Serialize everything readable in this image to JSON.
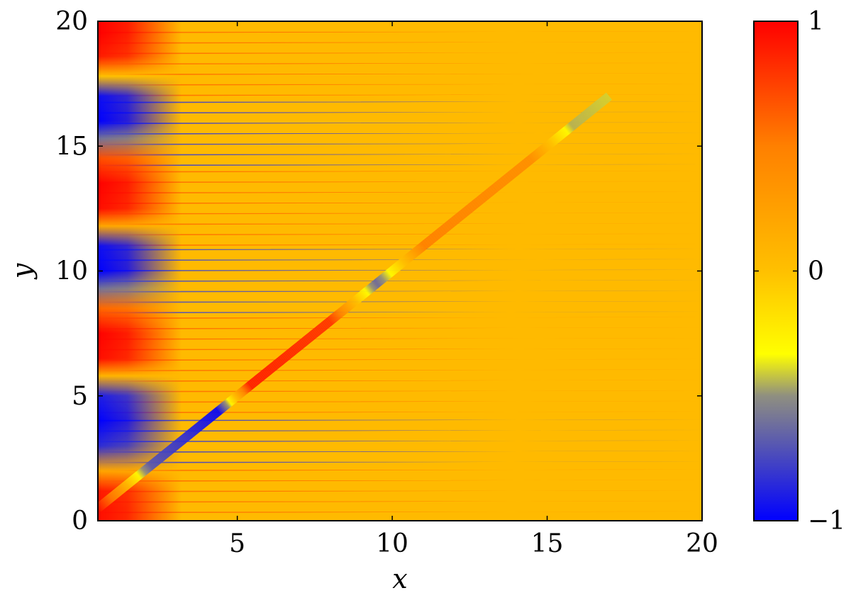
{
  "chart_data": {
    "type": "heatmap",
    "title": "",
    "xlabel": "x",
    "ylabel": "y",
    "xlim": [
      0.5,
      20
    ],
    "ylim": [
      0,
      20
    ],
    "x_ticks": [
      5,
      10,
      15,
      20
    ],
    "x_tick_labels": [
      "5",
      "10",
      "15",
      "20"
    ],
    "y_ticks": [
      0,
      5,
      10,
      15,
      20
    ],
    "y_tick_labels": [
      "0",
      "5",
      "10",
      "15",
      "20"
    ],
    "colorbar": {
      "range": [
        -1,
        1
      ],
      "ticks": [
        -1,
        0,
        1
      ],
      "tick_labels": [
        "−1",
        "0",
        "1"
      ],
      "colormap": [
        {
          "value": -1,
          "color": "#0000ff"
        },
        {
          "value": -0.5,
          "color": "#8f8f80"
        },
        {
          "value": -0.333,
          "color": "#ffff00"
        },
        {
          "value": 0,
          "color": "#ffc000"
        },
        {
          "value": 0.5,
          "color": "#ff8000"
        },
        {
          "value": 1,
          "color": "#ff0000"
        }
      ]
    },
    "background_value": 0.05,
    "left_edge_field": [
      {
        "y": 0.5,
        "value": 0.95
      },
      {
        "y": 1.2,
        "value": 0.9
      },
      {
        "y": 2.0,
        "value": 0.2
      },
      {
        "y": 3.0,
        "value": -0.85
      },
      {
        "y": 4.0,
        "value": -1.0
      },
      {
        "y": 5.0,
        "value": -0.9
      },
      {
        "y": 5.8,
        "value": 0.1
      },
      {
        "y": 6.5,
        "value": 0.95
      },
      {
        "y": 7.5,
        "value": 1.0
      },
      {
        "y": 8.5,
        "value": 0.6
      },
      {
        "y": 9.3,
        "value": -0.6
      },
      {
        "y": 10.0,
        "value": -1.0
      },
      {
        "y": 11.0,
        "value": -0.95
      },
      {
        "y": 11.8,
        "value": 0.2
      },
      {
        "y": 12.5,
        "value": 0.95
      },
      {
        "y": 13.5,
        "value": 1.0
      },
      {
        "y": 14.5,
        "value": 0.7
      },
      {
        "y": 15.3,
        "value": -0.6
      },
      {
        "y": 16.0,
        "value": -1.0
      },
      {
        "y": 17.0,
        "value": -0.95
      },
      {
        "y": 17.8,
        "value": 0.0
      },
      {
        "y": 18.6,
        "value": 0.9
      },
      {
        "y": 19.5,
        "value": 1.0
      }
    ],
    "streak_bands": [
      {
        "y_from": 0.3,
        "y_to": 2.3,
        "value": 0.55
      },
      {
        "y_from": 2.3,
        "y_to": 4.3,
        "value": -0.75
      },
      {
        "y_from": 4.3,
        "y_to": 8.3,
        "value": 0.55
      },
      {
        "y_from": 8.3,
        "y_to": 11.0,
        "value": -0.7
      },
      {
        "y_from": 11.0,
        "y_to": 14.2,
        "value": 0.55
      },
      {
        "y_from": 14.2,
        "y_to": 17.0,
        "value": -0.75
      },
      {
        "y_from": 17.0,
        "y_to": 19.7,
        "value": 0.55
      }
    ],
    "streak_spacing": 0.42,
    "diagonal_ridge": [
      {
        "x": 0.5,
        "y": 0.5,
        "value": 0.9
      },
      {
        "x": 2.2,
        "y": 2.2,
        "value": -0.7
      },
      {
        "x": 4.4,
        "y": 4.4,
        "value": -1.0
      },
      {
        "x": 5.4,
        "y": 5.4,
        "value": 0.9
      },
      {
        "x": 8.0,
        "y": 8.0,
        "value": 0.8
      },
      {
        "x": 9.5,
        "y": 9.5,
        "value": -0.65
      },
      {
        "x": 11.0,
        "y": 11.0,
        "value": 0.5
      },
      {
        "x": 14.5,
        "y": 14.5,
        "value": 0.4
      },
      {
        "x": 15.8,
        "y": 15.8,
        "value": -0.45
      },
      {
        "x": 17.0,
        "y": 17.0,
        "value": -0.4
      }
    ]
  }
}
